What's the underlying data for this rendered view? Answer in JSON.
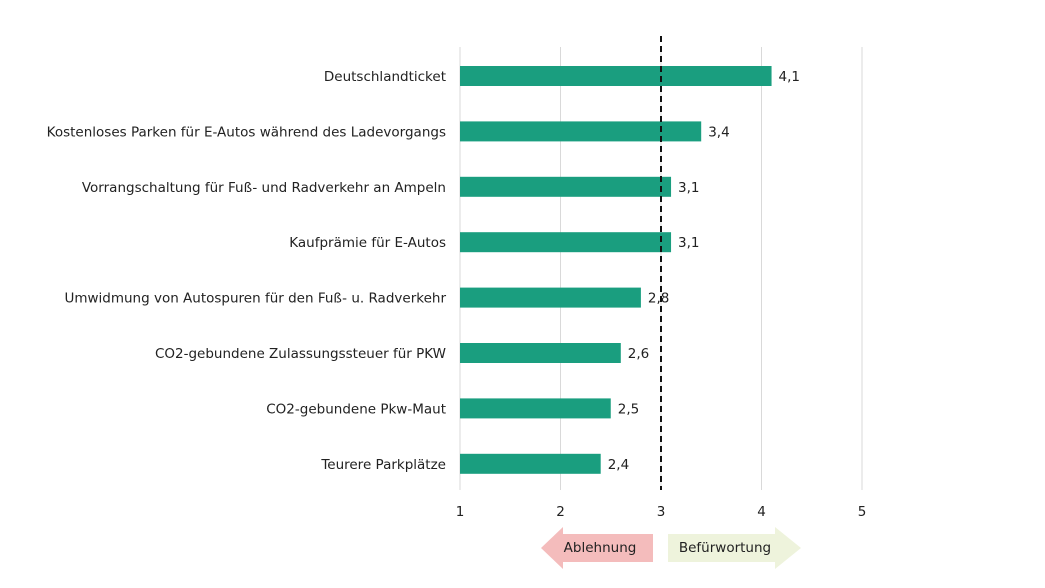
{
  "chart_data": {
    "type": "bar",
    "orientation": "horizontal",
    "categories": [
      "Deutschlandticket",
      "Kostenloses Parken für E-Autos während des Ladevorgangs",
      "Vorrangschaltung für Fuß- und Radverkehr an Ampeln",
      "Kaufprämie für E-Autos",
      "Umwidmung von Autospuren für den Fuß- u. Radverkehr",
      "CO2-gebundene Zulassungssteuer für PKW",
      "CO2-gebundene Pkw-Maut",
      "Teurere Parkplätze"
    ],
    "values": [
      4.1,
      3.4,
      3.1,
      3.1,
      2.8,
      2.6,
      2.5,
      2.4
    ],
    "value_labels": [
      "4,1",
      "3,4",
      "3,1",
      "3,1",
      "2,8",
      "2,6",
      "2,5",
      "2,4"
    ],
    "xlim": [
      1,
      5
    ],
    "x_ticks": [
      "1",
      "2",
      "3",
      "4",
      "5"
    ],
    "reference_line": 3,
    "grid": "vertical",
    "bar_color": "#1a9e7f",
    "annotations": {
      "left_arrow": {
        "label": "Ablehnung",
        "color": "#f4bcbc"
      },
      "right_arrow": {
        "label": "Befürwortung",
        "color": "#eef3dc"
      }
    }
  }
}
